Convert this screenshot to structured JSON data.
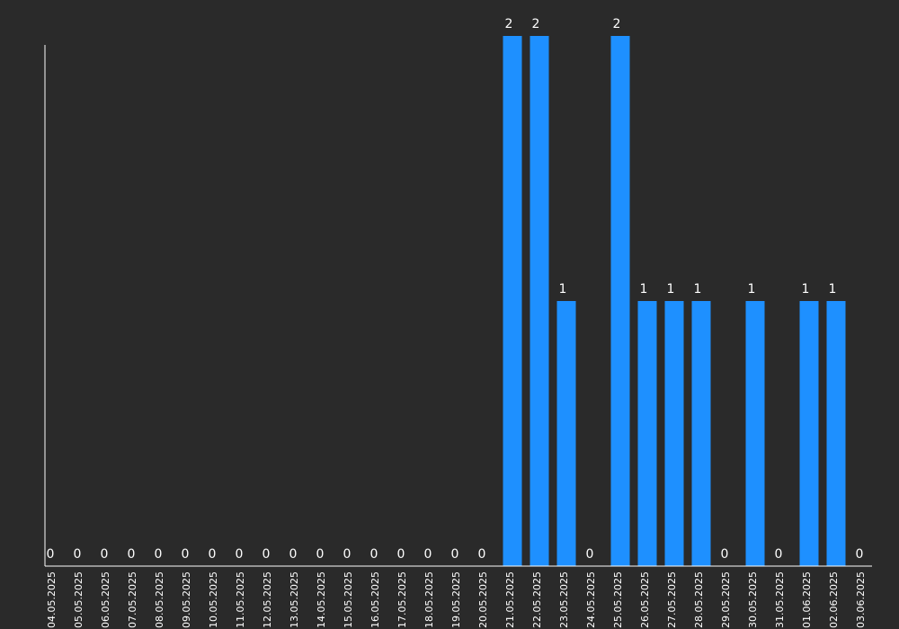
{
  "chart_data": {
    "type": "bar",
    "categories": [
      "04.05.2025",
      "05.05.2025",
      "06.05.2025",
      "07.05.2025",
      "08.05.2025",
      "09.05.2025",
      "10.05.2025",
      "11.05.2025",
      "12.05.2025",
      "13.05.2025",
      "14.05.2025",
      "15.05.2025",
      "16.05.2025",
      "17.05.2025",
      "18.05.2025",
      "19.05.2025",
      "20.05.2025",
      "21.05.2025",
      "22.05.2025",
      "23.05.2025",
      "24.05.2025",
      "25.05.2025",
      "26.05.2025",
      "27.05.2025",
      "28.05.2025",
      "29.05.2025",
      "30.05.2025",
      "31.05.2025",
      "01.06.2025",
      "02.06.2025",
      "03.06.2025"
    ],
    "values": [
      0,
      0,
      0,
      0,
      0,
      0,
      0,
      0,
      0,
      0,
      0,
      0,
      0,
      0,
      0,
      0,
      0,
      2,
      2,
      1,
      0,
      2,
      1,
      1,
      1,
      0,
      1,
      0,
      1,
      1,
      0
    ],
    "title": "",
    "xlabel": "",
    "ylabel": "",
    "ylim": [
      0,
      2
    ],
    "grid": false,
    "legend": "none",
    "bar_color": "#1e90ff",
    "axis_color": "#ffffff",
    "label_color": "#ffffff",
    "background_color": "#2a2a2a"
  }
}
